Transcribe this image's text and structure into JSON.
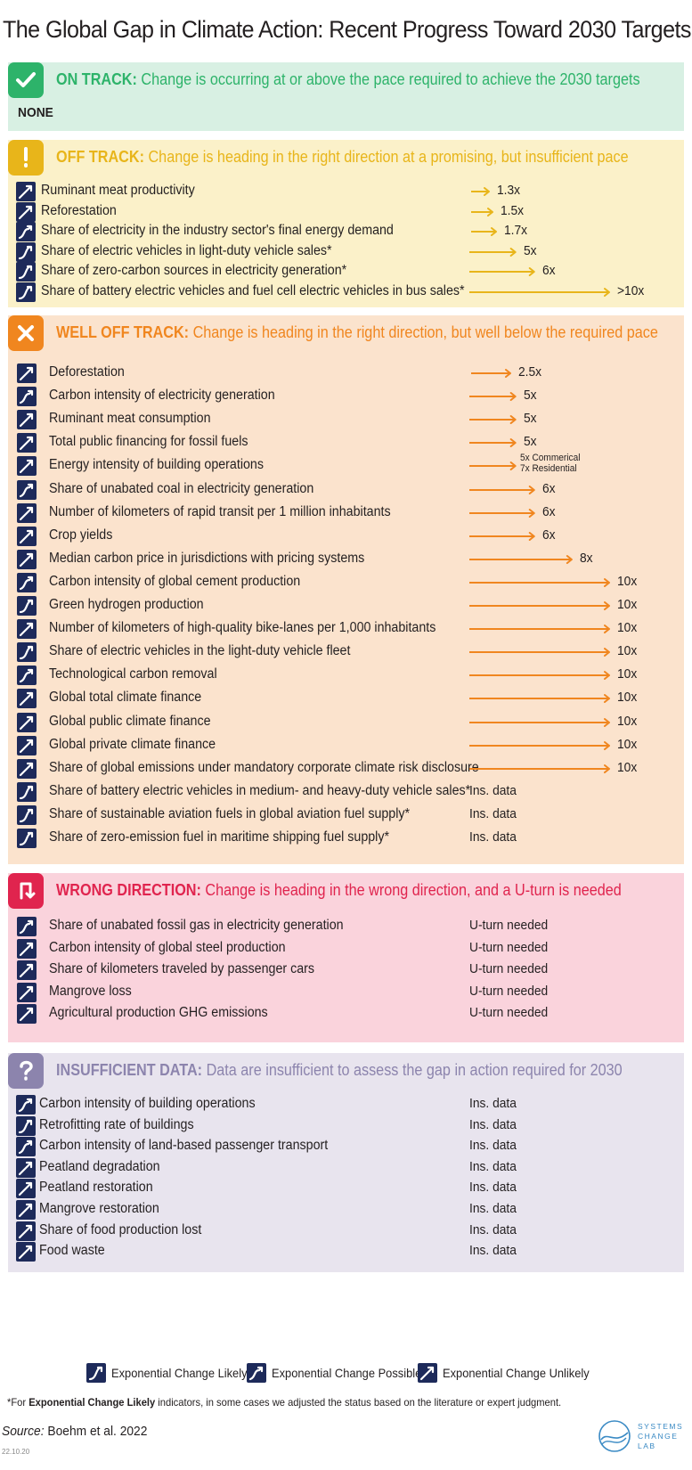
{
  "title": "The Global Gap in Climate Action: Recent Progress Toward 2030 Targets",
  "colors": {
    "on_track_bg": "#d8f0e3",
    "on_track_accent": "#2db36a",
    "off_track_bg": "#fbf1c9",
    "off_track_accent": "#e8b51a",
    "well_off_bg": "#fbe3cd",
    "well_off_accent": "#f0861f",
    "wrong_bg": "#fad3dc",
    "wrong_accent": "#e0244e",
    "insufficient_bg": "#e8e4ee",
    "insufficient_accent": "#8c84ad",
    "indicator_icon": "#1d2a5a"
  },
  "chart_data": {
    "type": "table",
    "value_unit": "x (times faster required)",
    "sections": [
      {
        "key": "on_track",
        "status": "ON TRACK:",
        "description": "Change is occurring at or above the pace required to achieve the 2030 targets",
        "icon": "check-icon",
        "none_label": "NONE",
        "items": []
      },
      {
        "key": "off_track",
        "status": "OFF TRACK:",
        "description": "Change is heading in the right direction at a promising, but insufficient pace",
        "icon": "exclamation-icon",
        "items": [
          {
            "name": "Ruminant meat productivity",
            "type": "unlikely",
            "value": 1.3,
            "label": "1.3x"
          },
          {
            "name": "Reforestation",
            "type": "unlikely",
            "value": 1.5,
            "label": "1.5x"
          },
          {
            "name": "Share of electricity in the industry sector's final energy demand",
            "type": "possible",
            "value": 1.7,
            "label": "1.7x"
          },
          {
            "name": "Share of electric vehicles in light-duty vehicle sales*",
            "type": "likely",
            "value": 5,
            "label": "5x"
          },
          {
            "name": "Share of zero-carbon sources in electricity generation*",
            "type": "likely",
            "value": 6,
            "label": "6x"
          },
          {
            "name": "Share of battery electric vehicles and fuel cell electric vehicles in bus sales*",
            "type": "likely",
            "value": 10,
            "label": ">10x"
          }
        ]
      },
      {
        "key": "well_off_track",
        "status": "WELL OFF TRACK:",
        "description": "Change is heading in the right direction, but well below the required pace",
        "icon": "x-icon",
        "items": [
          {
            "name": "Deforestation",
            "type": "unlikely",
            "value": 2.5,
            "label": "2.5x"
          },
          {
            "name": "Carbon intensity of electricity generation",
            "type": "possible",
            "value": 5,
            "label": "5x"
          },
          {
            "name": "Ruminant meat consumption",
            "type": "unlikely",
            "value": 5,
            "label": "5x"
          },
          {
            "name": "Total public financing for fossil fuels",
            "type": "unlikely",
            "value": 5,
            "label": "5x"
          },
          {
            "name": "Energy intensity of building operations",
            "type": "unlikely",
            "value": 5,
            "label": "5x Commerical",
            "label2": "7x Residential"
          },
          {
            "name": "Share of unabated coal in electricity generation",
            "type": "possible",
            "value": 6,
            "label": "6x"
          },
          {
            "name": "Number of kilometers of rapid transit per 1 million inhabitants",
            "type": "unlikely",
            "value": 6,
            "label": "6x"
          },
          {
            "name": "Crop yields",
            "type": "unlikely",
            "value": 6,
            "label": "6x"
          },
          {
            "name": "Median carbon price in jurisdictions with pricing systems",
            "type": "unlikely",
            "value": 8,
            "label": "8x"
          },
          {
            "name": "Carbon intensity of global cement production",
            "type": "possible",
            "value": 10,
            "label": "10x"
          },
          {
            "name": "Green hydrogen production",
            "type": "likely",
            "value": 10,
            "label": "10x"
          },
          {
            "name": "Number of kilometers of high-quality bike-lanes per 1,000 inhabitants",
            "type": "unlikely",
            "value": 10,
            "label": "10x"
          },
          {
            "name": "Share of electric vehicles in the light-duty vehicle fleet",
            "type": "likely",
            "value": 10,
            "label": "10x"
          },
          {
            "name": "Technological carbon removal",
            "type": "possible",
            "value": 10,
            "label": "10x"
          },
          {
            "name": "Global total climate finance",
            "type": "unlikely",
            "value": 10,
            "label": "10x"
          },
          {
            "name": "Global public climate finance",
            "type": "unlikely",
            "value": 10,
            "label": "10x"
          },
          {
            "name": "Global private climate finance",
            "type": "unlikely",
            "value": 10,
            "label": "10x"
          },
          {
            "name": "Share of global emissions under mandatory corporate climate risk disclosure",
            "type": "unlikely",
            "value": 10,
            "label": "10x"
          },
          {
            "name": "Share of battery electric vehicles in medium- and heavy-duty vehicle sales*",
            "type": "likely",
            "value": null,
            "label": "Ins. data"
          },
          {
            "name": "Share of sustainable aviation fuels in global aviation fuel supply*",
            "type": "likely",
            "value": null,
            "label": "Ins. data"
          },
          {
            "name": "Share of zero-emission fuel in maritime shipping fuel supply*",
            "type": "likely",
            "value": null,
            "label": "Ins. data"
          }
        ]
      },
      {
        "key": "wrong_direction",
        "status": "WRONG DIRECTION:",
        "description": "Change is heading in the wrong direction, and a U-turn is needed",
        "icon": "u-turn-icon",
        "items": [
          {
            "name": "Share of unabated fossil gas in electricity generation",
            "type": "possible",
            "value": null,
            "label": "U-turn needed"
          },
          {
            "name": "Carbon intensity of global steel production",
            "type": "unlikely",
            "value": null,
            "label": "U-turn needed"
          },
          {
            "name": "Share of kilometers traveled by passenger cars",
            "type": "unlikely",
            "value": null,
            "label": "U-turn needed"
          },
          {
            "name": "Mangrove loss",
            "type": "unlikely",
            "value": null,
            "label": "U-turn needed"
          },
          {
            "name": "Agricultural production GHG emissions",
            "type": "unlikely",
            "value": null,
            "label": "U-turn needed"
          }
        ]
      },
      {
        "key": "insufficient_data",
        "status": "INSUFFICIENT DATA:",
        "description": "Data are insufficient to assess the gap in action required for 2030",
        "icon": "question-icon",
        "items": [
          {
            "name": "Carbon intensity of building operations",
            "type": "possible",
            "value": null,
            "label": "Ins. data"
          },
          {
            "name": "Retrofitting rate of buildings",
            "type": "likely",
            "value": null,
            "label": "Ins. data"
          },
          {
            "name": "Carbon intensity of land-based passenger transport",
            "type": "possible",
            "value": null,
            "label": "Ins. data"
          },
          {
            "name": "Peatland degradation",
            "type": "unlikely",
            "value": null,
            "label": "Ins. data"
          },
          {
            "name": "Peatland restoration",
            "type": "unlikely",
            "value": null,
            "label": "Ins. data"
          },
          {
            "name": "Mangrove restoration",
            "type": "unlikely",
            "value": null,
            "label": "Ins. data"
          },
          {
            "name": "Share of food production lost",
            "type": "unlikely",
            "value": null,
            "label": "Ins. data"
          },
          {
            "name": "Food waste",
            "type": "unlikely",
            "value": null,
            "label": "Ins. data"
          }
        ]
      }
    ],
    "legend": [
      {
        "type": "likely",
        "label": "Exponential Change Likely"
      },
      {
        "type": "possible",
        "label": "Exponential Change Possible"
      },
      {
        "type": "unlikely",
        "label": "Exponential Change Unlikely"
      }
    ]
  },
  "footnote": {
    "prefix": "*For ",
    "bold": "Exponential Change Likely",
    "suffix": " indicators, in some cases we adjusted the status based on the literature or expert judgment."
  },
  "source": {
    "label": "Source:",
    "text": " Boehm et al. 2022"
  },
  "date_code": "22.10.20",
  "logo": {
    "line1": "SYSTEMS",
    "line2": "CHANGE",
    "line3": "LAB"
  }
}
